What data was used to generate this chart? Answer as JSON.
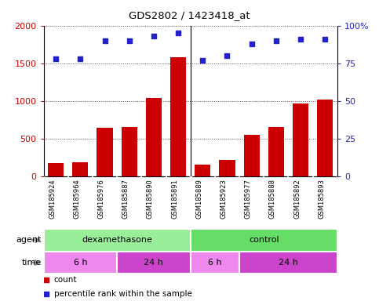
{
  "title": "GDS2802 / 1423418_at",
  "samples": [
    "GSM185924",
    "GSM185964",
    "GSM185976",
    "GSM185887",
    "GSM185890",
    "GSM185891",
    "GSM185889",
    "GSM185923",
    "GSM185977",
    "GSM185888",
    "GSM185892",
    "GSM185893"
  ],
  "counts": [
    175,
    185,
    640,
    650,
    1040,
    1580,
    155,
    210,
    545,
    650,
    960,
    1020
  ],
  "percentile_ranks": [
    78,
    78,
    90,
    90,
    93,
    95,
    77,
    80,
    88,
    90,
    91,
    91
  ],
  "ylim_left": [
    0,
    2000
  ],
  "ylim_right": [
    0,
    100
  ],
  "yticks_left": [
    0,
    500,
    1000,
    1500,
    2000
  ],
  "yticks_right": [
    0,
    25,
    50,
    75,
    100
  ],
  "bar_color": "#cc0000",
  "dot_color": "#2222cc",
  "agent_groups": [
    {
      "label": "dexamethasone",
      "start": 0,
      "end": 6,
      "color": "#99ee99"
    },
    {
      "label": "control",
      "start": 6,
      "end": 12,
      "color": "#66dd66"
    }
  ],
  "time_groups": [
    {
      "label": "6 h",
      "start": 0,
      "end": 3,
      "color": "#ee88ee"
    },
    {
      "label": "24 h",
      "start": 3,
      "end": 6,
      "color": "#cc44cc"
    },
    {
      "label": "6 h",
      "start": 6,
      "end": 8,
      "color": "#ee88ee"
    },
    {
      "label": "24 h",
      "start": 8,
      "end": 12,
      "color": "#cc44cc"
    }
  ],
  "legend_count_color": "#cc0000",
  "legend_dot_color": "#2222cc",
  "bg_color": "#ffffff",
  "grid_color": "#555555",
  "sample_bg_color": "#cccccc",
  "sample_border_color": "#999999",
  "arrow_color": "#888888",
  "dex_split": 6,
  "time_split_6h_dex": 3,
  "time_split_6h_ctrl": 8
}
